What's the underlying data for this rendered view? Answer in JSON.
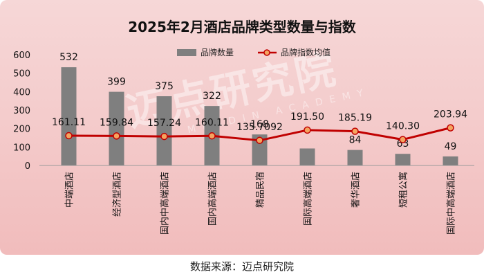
{
  "chart_data": {
    "type": "bar",
    "title": "2025年2月酒店品牌类型数量与指数",
    "categories": [
      "中端酒店",
      "经济型酒店",
      "国内中高端酒店",
      "国内高端酒店",
      "精品民宿",
      "国际高端酒店",
      "奢华酒店",
      "短租公寓",
      "国际中高端酒店"
    ],
    "series": [
      {
        "name": "品牌数量",
        "type": "bar",
        "values": [
          532,
          399,
          375,
          322,
          168,
          92,
          84,
          63,
          49
        ],
        "labels": [
          "532",
          "399",
          "375",
          "322",
          "168",
          "",
          "84",
          "63",
          "49"
        ],
        "color": "#7f7f7f"
      },
      {
        "name": "品牌指数均值",
        "type": "line",
        "values": [
          161.11,
          159.84,
          157.24,
          160.11,
          135.7092,
          191.5,
          185.19,
          140.3,
          203.94
        ],
        "labels": [
          "161.11",
          "159.84",
          "157.24",
          "160.11",
          "135.7092",
          "191.50",
          "185.19",
          "140.30",
          "203.94"
        ],
        "color": "#c00000",
        "marker_fill": "#f4a460"
      }
    ],
    "yticks": [
      "0",
      "100",
      "200",
      "300",
      "400",
      "500",
      "600"
    ],
    "ylim": [
      0,
      600
    ],
    "legend_position": "top-center",
    "grid": false
  },
  "watermark": {
    "main": "迈点研究院",
    "sub": "MEADIN ACADEMY"
  },
  "source": "数据来源：迈点研究院",
  "colors": {
    "bar": "#7f7f7f",
    "line": "#c00000",
    "marker": "#f4a460",
    "background": "#f4cccc"
  }
}
